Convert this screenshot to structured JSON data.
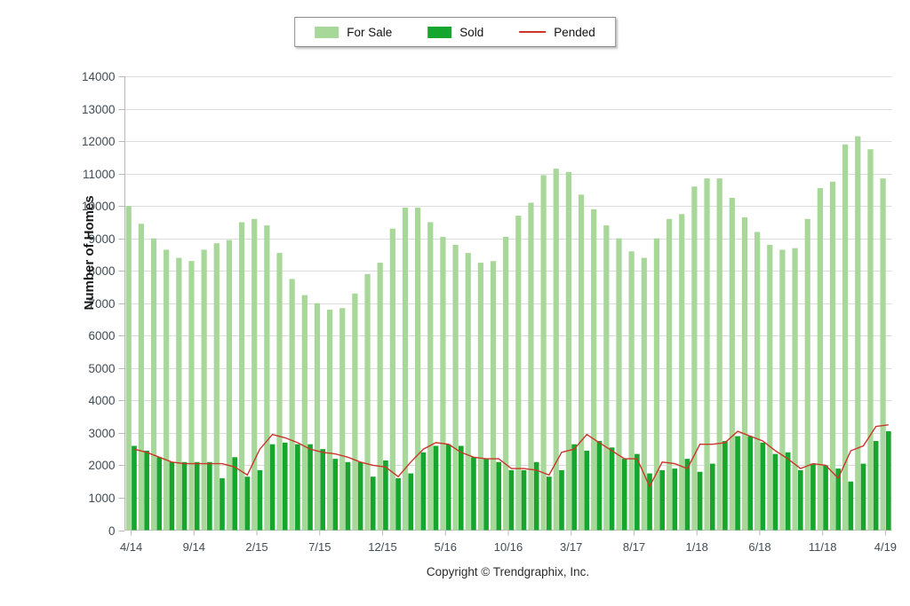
{
  "legend": {
    "items": [
      {
        "label": "For Sale",
        "swatch": "square",
        "color": "#a8d79a"
      },
      {
        "label": "Sold",
        "swatch": "square",
        "color": "#17a62d"
      },
      {
        "label": "Pended",
        "swatch": "line",
        "color": "#c9362a"
      }
    ]
  },
  "footer": {
    "copyright": "Copyright © Trendgraphix, Inc."
  },
  "chart_data": {
    "type": "bar",
    "title": "",
    "ylabel": "Number of Homes",
    "ylim": [
      0,
      14000
    ],
    "ytick_step": 1000,
    "x_label_every": 5,
    "grid": true,
    "legend_position": "top-center",
    "colors": {
      "gridline": "#dcdcdc",
      "axis": "#b9b9b9",
      "tick_label": "#424c54"
    },
    "categories": [
      "4/14",
      "5/14",
      "6/14",
      "7/14",
      "8/14",
      "9/14",
      "10/14",
      "11/14",
      "12/14",
      "1/15",
      "2/15",
      "3/15",
      "4/15",
      "5/15",
      "6/15",
      "7/15",
      "8/15",
      "9/15",
      "10/15",
      "11/15",
      "12/15",
      "1/16",
      "2/16",
      "3/16",
      "4/16",
      "5/16",
      "6/16",
      "7/16",
      "8/16",
      "9/16",
      "10/16",
      "11/16",
      "12/16",
      "1/17",
      "2/17",
      "3/17",
      "4/17",
      "5/17",
      "6/17",
      "7/17",
      "8/17",
      "9/17",
      "10/17",
      "11/17",
      "12/17",
      "1/18",
      "2/18",
      "3/18",
      "4/18",
      "5/18",
      "6/18",
      "7/18",
      "8/18",
      "9/18",
      "10/18",
      "11/18",
      "12/18",
      "1/19",
      "2/19",
      "3/19",
      "4/19"
    ],
    "series": [
      {
        "name": "For Sale",
        "type": "bar",
        "color": "#a8d79a",
        "values": [
          10000,
          9450,
          9000,
          8650,
          8400,
          8300,
          8650,
          8850,
          8950,
          9500,
          9600,
          9400,
          8550,
          7750,
          7250,
          7000,
          6800,
          6850,
          7300,
          7900,
          8250,
          9300,
          9950,
          9950,
          9500,
          9050,
          8800,
          8550,
          8250,
          8300,
          9050,
          9700,
          10100,
          10950,
          11150,
          11050,
          10350,
          9900,
          9400,
          9000,
          8600,
          8400,
          9000,
          9600,
          9750,
          10600,
          10850,
          10850,
          10250,
          9650,
          9200,
          8800,
          8650,
          8700,
          9600,
          10550,
          10750,
          11900,
          12150,
          11750,
          10850
        ]
      },
      {
        "name": "Sold",
        "type": "bar",
        "color": "#17a62d",
        "values": [
          2600,
          2450,
          2250,
          2100,
          2100,
          2100,
          2100,
          1600,
          2250,
          1650,
          1850,
          2650,
          2700,
          2650,
          2650,
          2500,
          2200,
          2100,
          2100,
          1650,
          2150,
          1600,
          1750,
          2400,
          2600,
          2650,
          2600,
          2250,
          2200,
          2100,
          1850,
          1850,
          2100,
          1650,
          1850,
          2650,
          2450,
          2750,
          2550,
          2200,
          2350,
          1750,
          1850,
          1900,
          2200,
          1800,
          2050,
          2750,
          2900,
          2900,
          2700,
          2350,
          2400,
          1850,
          2050,
          2000,
          1900,
          1500,
          2050,
          2750,
          3050
        ]
      },
      {
        "name": "Pended",
        "type": "line",
        "color": "#c9362a",
        "values": [
          2500,
          2400,
          2250,
          2100,
          2050,
          2050,
          2050,
          2050,
          1950,
          1700,
          2500,
          2950,
          2850,
          2700,
          2500,
          2400,
          2350,
          2250,
          2100,
          2000,
          1950,
          1650,
          2100,
          2500,
          2700,
          2650,
          2400,
          2250,
          2200,
          2200,
          1900,
          1900,
          1850,
          1700,
          2400,
          2500,
          2950,
          2700,
          2450,
          2200,
          2200,
          1350,
          2100,
          2050,
          1900,
          2650,
          2650,
          2700,
          3050,
          2900,
          2750,
          2450,
          2200,
          1900,
          2050,
          2000,
          1600,
          2450,
          2600,
          3200,
          3250
        ]
      }
    ]
  }
}
